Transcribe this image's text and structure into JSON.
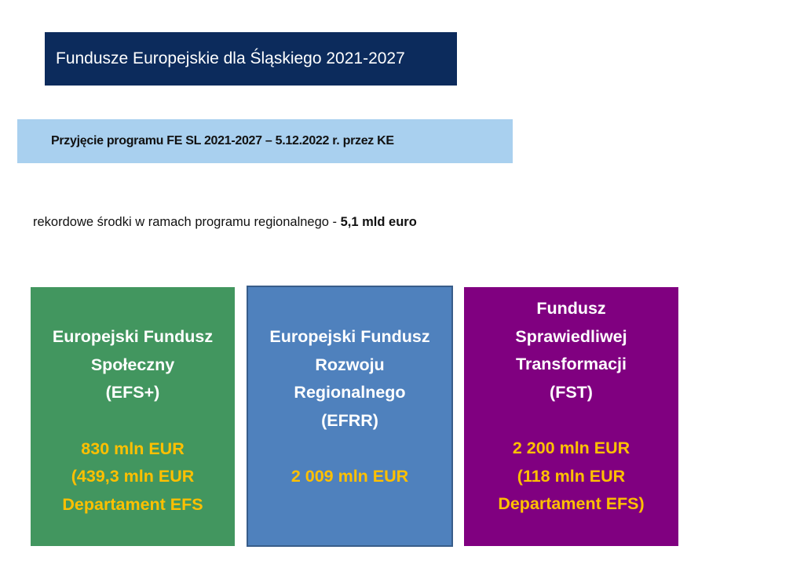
{
  "title": "Fundusze Europejskie dla Śląskiego 2021-2027",
  "subtitle": "Przyjęcie programu FE SL 2021-2027 – 5.12.2022 r. przez KE",
  "intro": {
    "text": "rekordowe środki w ramach programu regionalnego - ",
    "highlight": "5,1 mld euro"
  },
  "colors": {
    "title_bg": "#0c2b5c",
    "subtitle_bg": "#a9d0ef",
    "efs": "#42965f",
    "efrr": "#4f81bd",
    "fst": "#800080",
    "amount": "#ffc000"
  },
  "funds": [
    {
      "name_lines": [
        "Europejski Fundusz",
        "Społeczny",
        "(EFS+)"
      ],
      "amount_lines": [
        "830 mln EUR",
        "(439,3 mln EUR",
        "Departament EFS"
      ]
    },
    {
      "name_lines": [
        "Europejski Fundusz",
        "Rozwoju",
        "Regionalnego",
        "(EFRR)"
      ],
      "amount_lines": [
        "2 009 mln EUR"
      ]
    },
    {
      "name_lines": [
        "Fundusz",
        "Sprawiedliwej",
        "Transformacji",
        "(FST)"
      ],
      "amount_lines": [
        "2 200 mln EUR",
        "(118 mln EUR",
        "Departament EFS)"
      ]
    }
  ]
}
